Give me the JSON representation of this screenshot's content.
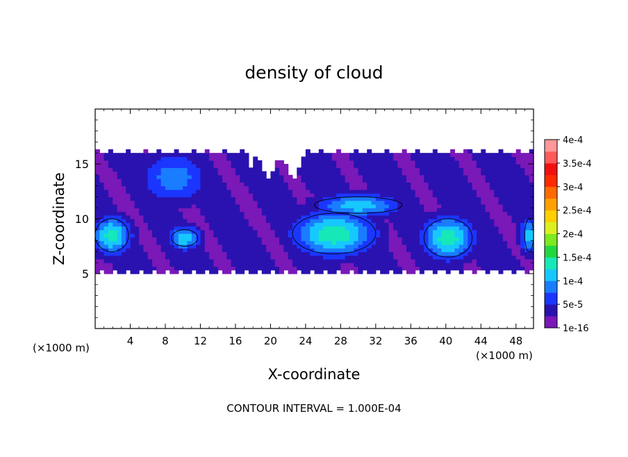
{
  "chart_data": {
    "type": "heatmap",
    "title": "density of cloud",
    "xlabel": "X-coordinate",
    "ylabel": "Z-coordinate",
    "x_unit_label": "(×1000 m)",
    "x_unit_label_right": "(×1000 m)",
    "footer": "CONTOUR INTERVAL = 1.000E-04",
    "xlim": [
      0,
      50
    ],
    "ylim": [
      0,
      20
    ],
    "x_ticks": [
      4,
      8,
      12,
      16,
      20,
      24,
      28,
      32,
      36,
      40,
      44,
      48
    ],
    "x_tick_labels": [
      "4",
      "8",
      "12",
      "16",
      "20",
      "24",
      "28",
      "32",
      "36",
      "40",
      "44",
      "48"
    ],
    "y_ticks": [
      5,
      10,
      15
    ],
    "y_tick_labels": [
      "5",
      "10",
      "15"
    ],
    "contour_level": 0.0001,
    "colorbar": {
      "labels": [
        "1e-16",
        "5e-5",
        "1e-4",
        "1.5e-4",
        "2e-4",
        "2.5e-4",
        "3e-4",
        "3.5e-4",
        "4e-4"
      ],
      "colors": [
        "#7a18b8",
        "#2a12b0",
        "#1b36ff",
        "#1a7cff",
        "#17c8ff",
        "#16e8b8",
        "#22d840",
        "#7ee820",
        "#dcf020",
        "#ffd000",
        "#ffa000",
        "#ff6a00",
        "#ff2a00",
        "#f01010",
        "#ff5a5a",
        "#ff9898"
      ]
    },
    "cloud_z_range": [
      5,
      16.3
    ],
    "cores": [
      {
        "x_range": [
          0,
          3.8
        ],
        "z_range": [
          7,
          10
        ],
        "peak": 0.000135
      },
      {
        "x_range": [
          8.7,
          11.7
        ],
        "z_range": [
          7.5,
          9
        ],
        "peak": 0.00012
      },
      {
        "x_range": [
          22.5,
          32
        ],
        "z_range": [
          6.8,
          10.5
        ],
        "peak": 0.000145
      },
      {
        "x_range": [
          25,
          35
        ],
        "z_range": [
          10.5,
          12
        ],
        "peak": 0.000115
      },
      {
        "x_range": [
          37.5,
          43
        ],
        "z_range": [
          6.5,
          10
        ],
        "peak": 0.00014
      },
      {
        "x_range": [
          49,
          50
        ],
        "z_range": [
          7,
          10
        ],
        "peak": 0.00011
      },
      {
        "x_range": [
          5,
          13
        ],
        "z_range": [
          11.5,
          16
        ],
        "peak": 9e-05
      }
    ]
  }
}
